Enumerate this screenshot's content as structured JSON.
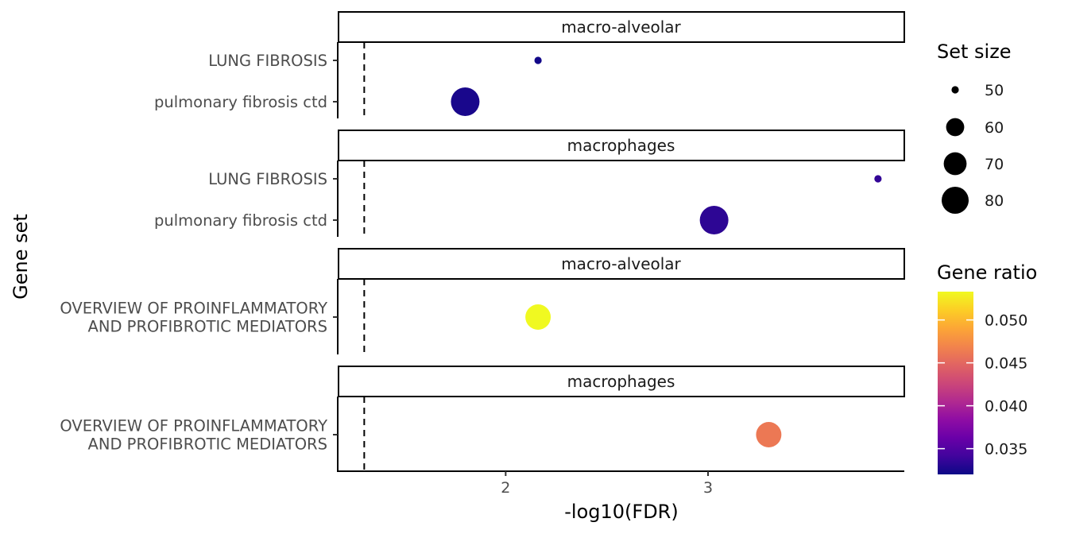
{
  "chart_data": {
    "type": "scatter",
    "xlabel": "-log10(FDR)",
    "ylabel": "Gene set",
    "xlim": [
      1.17,
      3.97
    ],
    "x_ticks": [
      "2",
      "3"
    ],
    "x_tick_values": [
      2,
      3
    ],
    "threshold_x": 1.301,
    "panels": [
      {
        "strip": "macro-alveolar",
        "categories": [
          "LUNG FIBROSIS",
          "pulmonary fibrosis ctd"
        ],
        "points": [
          {
            "label": "LUNG FIBROSIS",
            "x": 2.16,
            "size": 47,
            "ratio": 0.0322
          },
          {
            "label": "pulmonary fibrosis ctd",
            "x": 1.8,
            "size": 80,
            "ratio": 0.0325
          }
        ]
      },
      {
        "strip": "macrophages",
        "categories": [
          "LUNG FIBROSIS",
          "pulmonary fibrosis ctd"
        ],
        "points": [
          {
            "label": "LUNG FIBROSIS",
            "x": 3.84,
            "size": 47,
            "ratio": 0.0335
          },
          {
            "label": "pulmonary fibrosis ctd",
            "x": 3.03,
            "size": 80,
            "ratio": 0.0333
          }
        ]
      },
      {
        "strip": "macro-alveolar",
        "categories": [
          "OVERVIEW OF PROINFLAMMATORY\nAND PROFIBROTIC MEDIATORS"
        ],
        "points": [
          {
            "label": "OVERVIEW OF PROINFLAMMATORY\nAND PROFIBROTIC MEDIATORS",
            "x": 2.16,
            "size": 75,
            "ratio": 0.0533
          }
        ]
      },
      {
        "strip": "macrophages",
        "categories": [
          "OVERVIEW OF PROINFLAMMATORY\nAND PROFIBROTIC MEDIATORS"
        ],
        "points": [
          {
            "label": "OVERVIEW OF PROINFLAMMATORY\nAND PROFIBROTIC MEDIATORS",
            "x": 3.3,
            "size": 75,
            "ratio": 0.0461
          }
        ]
      }
    ],
    "size_legend": {
      "title": "Set size",
      "breaks": [
        50,
        60,
        70,
        80
      ]
    },
    "color_legend": {
      "title": "Gene ratio",
      "min": 0.032,
      "max": 0.0533,
      "breaks": [
        0.035,
        0.04,
        0.045,
        0.05
      ],
      "break_labels": [
        "0.035",
        "0.040",
        "0.045",
        "0.050"
      ],
      "palette": [
        "#0d0887",
        "#41049d",
        "#6a00a8",
        "#8f0da4",
        "#b12a90",
        "#cc4778",
        "#e16462",
        "#f2844b",
        "#fca636",
        "#fcce25",
        "#f0f921"
      ]
    }
  }
}
